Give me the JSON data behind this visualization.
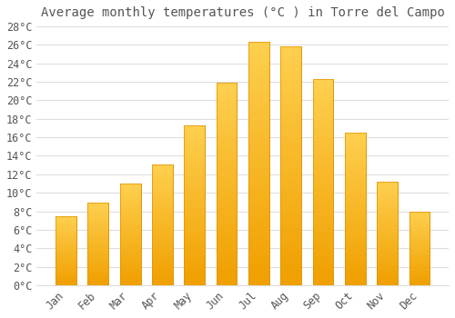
{
  "title": "Average monthly temperatures (°C ) in Torre del Campo",
  "months": [
    "Jan",
    "Feb",
    "Mar",
    "Apr",
    "May",
    "Jun",
    "Jul",
    "Aug",
    "Sep",
    "Oct",
    "Nov",
    "Dec"
  ],
  "values": [
    7.5,
    8.9,
    11.0,
    13.1,
    17.3,
    21.9,
    26.3,
    25.8,
    22.3,
    16.5,
    11.2,
    8.0
  ],
  "bar_color_top": "#FFD050",
  "bar_color_bottom": "#F0A000",
  "bar_edge_color": "#E09000",
  "background_color": "#FFFFFF",
  "grid_color": "#DDDDDD",
  "text_color": "#555555",
  "ylim": [
    0,
    28
  ],
  "ytick_step": 2,
  "title_fontsize": 10,
  "tick_fontsize": 8.5,
  "font_family": "monospace"
}
